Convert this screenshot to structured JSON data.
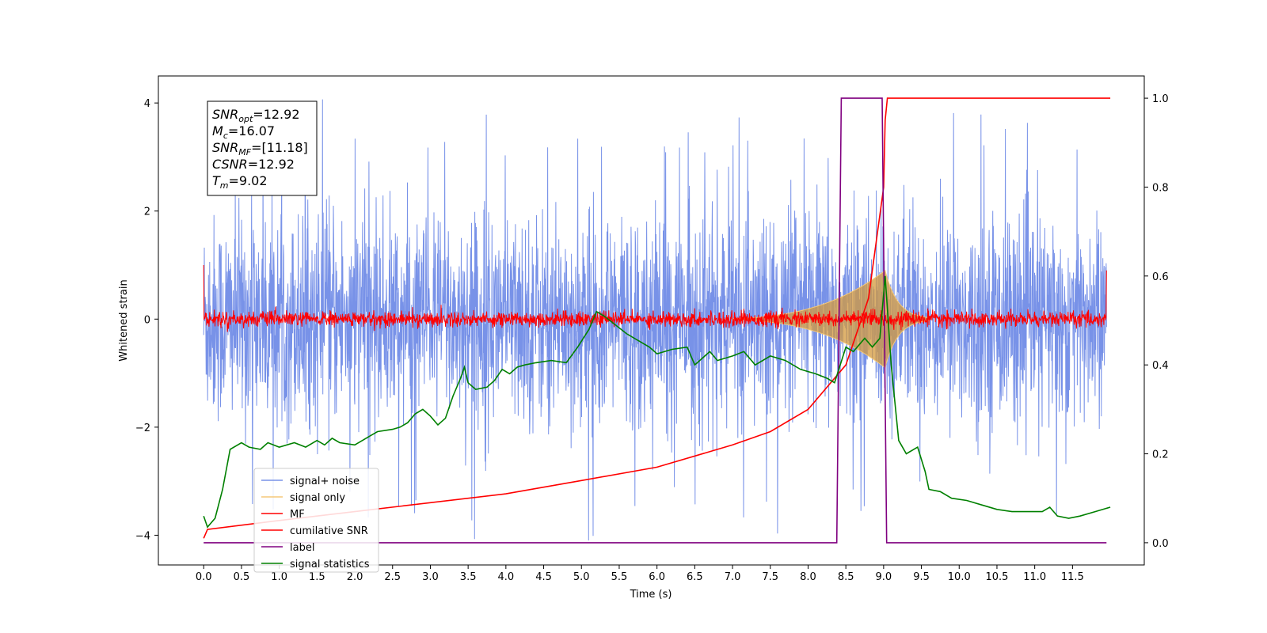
{
  "chart_data": {
    "type": "line",
    "xlabel": "Time (s)",
    "ylabel": "Whitened strain",
    "xlim": [
      -0.6,
      12.45
    ],
    "ylim": [
      -4.55,
      4.5
    ],
    "y2lim": [
      -0.05,
      1.05
    ],
    "x_ticks": [
      "0.0",
      "0.5",
      "1.0",
      "1.5",
      "2.0",
      "2.5",
      "3.0",
      "3.5",
      "4.0",
      "4.5",
      "5.0",
      "5.5",
      "6.0",
      "6.5",
      "7.0",
      "7.5",
      "8.0",
      "8.5",
      "9.0",
      "9.5",
      "10.0",
      "10.5",
      "11.0",
      "11.5"
    ],
    "y_ticks": [
      "4",
      "2",
      "0",
      "−2",
      "−4"
    ],
    "y2_ticks": [
      "1.0",
      "0.8",
      "0.6",
      "0.4",
      "0.2",
      "0.0"
    ],
    "grid": false,
    "legend_position": "lower-left",
    "annotation": [
      {
        "var": "SNR",
        "sub": "opt",
        "value": "=12.92"
      },
      {
        "var": "M",
        "sub": "c",
        "value": "=16.07"
      },
      {
        "var": "SNR",
        "sub": "MF",
        "value": "=[11.18]"
      },
      {
        "var": "CSNR",
        "sub": "",
        "value": "=12.92"
      },
      {
        "var": "T",
        "sub": "m",
        "value": "=9.02"
      }
    ],
    "series": [
      {
        "name": "signal+ noise",
        "color": "#7892e8",
        "axis": "left",
        "description": "noise band approx ±2.5, spikes to ±4",
        "noise_sigma": 1.0
      },
      {
        "name": "signal only",
        "color": "#f5c878",
        "axis": "left",
        "chirp_peak_time": 9.02,
        "chirp_peak_amplitude": 0.9
      },
      {
        "name": "MF",
        "color": "#ff0000",
        "axis": "left",
        "description": "matched filter output, near 0, ±0.25"
      },
      {
        "name": "cumilative SNR",
        "color": "#ff0000",
        "axis": "right",
        "x": [
          0.0,
          0.05,
          1.0,
          2.0,
          3.0,
          4.0,
          5.0,
          6.0,
          7.0,
          7.5,
          8.0,
          8.5,
          8.8,
          9.0,
          9.02,
          9.05,
          12.0
        ],
        "y": [
          0.01,
          0.03,
          0.05,
          0.07,
          0.09,
          0.11,
          0.14,
          0.17,
          0.22,
          0.25,
          0.3,
          0.4,
          0.55,
          0.8,
          0.95,
          1.0,
          1.0
        ]
      },
      {
        "name": "label",
        "color": "#800080",
        "axis": "right",
        "x": [
          0.0,
          8.38,
          8.44,
          8.98,
          9.04,
          11.95
        ],
        "y": [
          0.0,
          0.0,
          1.0,
          1.0,
          0.0,
          0.0
        ]
      },
      {
        "name": "signal statistics",
        "color": "#008000",
        "axis": "right",
        "x": [
          0.0,
          0.05,
          0.15,
          0.25,
          0.35,
          0.5,
          0.6,
          0.75,
          0.85,
          1.0,
          1.2,
          1.35,
          1.5,
          1.6,
          1.7,
          1.8,
          2.0,
          2.1,
          2.2,
          2.3,
          2.5,
          2.6,
          2.7,
          2.8,
          2.9,
          3.0,
          3.1,
          3.2,
          3.3,
          3.4,
          3.45,
          3.5,
          3.6,
          3.75,
          3.85,
          3.95,
          4.05,
          4.15,
          4.25,
          4.4,
          4.6,
          4.8,
          4.95,
          5.1,
          5.2,
          5.3,
          5.45,
          5.6,
          5.75,
          5.9,
          6.0,
          6.2,
          6.4,
          6.5,
          6.7,
          6.8,
          7.0,
          7.15,
          7.3,
          7.5,
          7.7,
          7.9,
          8.1,
          8.25,
          8.35,
          8.5,
          8.6,
          8.75,
          8.85,
          8.95,
          9.02,
          9.1,
          9.2,
          9.3,
          9.45,
          9.55,
          9.6,
          9.75,
          9.9,
          10.1,
          10.3,
          10.5,
          10.7,
          10.9,
          11.1,
          11.2,
          11.3,
          11.45,
          11.6,
          11.8,
          12.0
        ],
        "y": [
          0.06,
          0.035,
          0.055,
          0.12,
          0.21,
          0.225,
          0.215,
          0.21,
          0.225,
          0.215,
          0.225,
          0.215,
          0.23,
          0.22,
          0.235,
          0.225,
          0.22,
          0.23,
          0.24,
          0.25,
          0.255,
          0.26,
          0.27,
          0.29,
          0.3,
          0.285,
          0.265,
          0.28,
          0.33,
          0.37,
          0.395,
          0.36,
          0.345,
          0.35,
          0.365,
          0.39,
          0.38,
          0.395,
          0.4,
          0.405,
          0.41,
          0.405,
          0.44,
          0.48,
          0.52,
          0.51,
          0.49,
          0.47,
          0.455,
          0.44,
          0.425,
          0.435,
          0.44,
          0.4,
          0.43,
          0.41,
          0.42,
          0.43,
          0.4,
          0.42,
          0.41,
          0.39,
          0.38,
          0.37,
          0.36,
          0.44,
          0.43,
          0.46,
          0.44,
          0.46,
          0.6,
          0.4,
          0.23,
          0.2,
          0.215,
          0.16,
          0.12,
          0.115,
          0.1,
          0.095,
          0.085,
          0.075,
          0.07,
          0.07,
          0.07,
          0.08,
          0.06,
          0.055,
          0.06,
          0.07,
          0.08
        ]
      }
    ]
  }
}
